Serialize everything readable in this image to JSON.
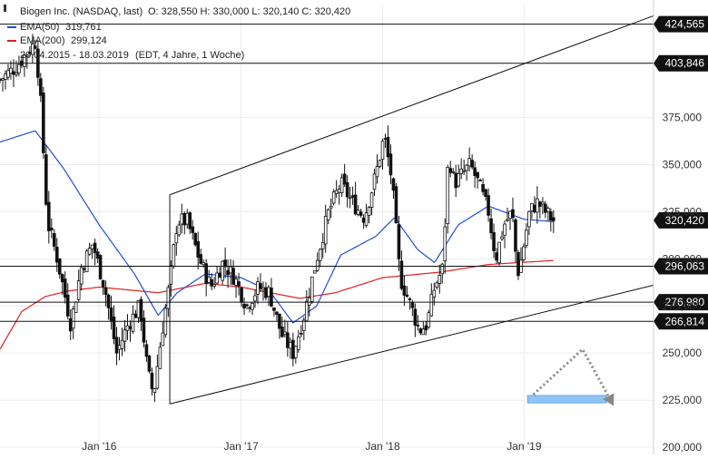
{
  "chart_data": {
    "type": "candlestick",
    "instrument": "Biogen Inc. (NASDAQ, last)",
    "ohlc": {
      "O": "328,550",
      "H": "330,000",
      "L": "320,140",
      "C": "320,420"
    },
    "ohlc_text": "O: 328,550  H: 330,000  L: 320,140  C: 320,420",
    "legend": [
      {
        "name": "EMA(50)",
        "value": "319,761",
        "color": "#1f4fd8"
      },
      {
        "name": "EMA(200)",
        "value": "299,124",
        "color": "#e02020"
      }
    ],
    "period": "20.04.2015 - 18.03.2019",
    "period_detail": "(EDT, 4 Jahre, 1 Woche)",
    "x_ticks": [
      {
        "label": "Jan '16",
        "date": "2016-01-01"
      },
      {
        "label": "Jan '17",
        "date": "2017-01-01"
      },
      {
        "label": "Jan '18",
        "date": "2018-01-01"
      },
      {
        "label": "Jan '19",
        "date": "2019-01-01"
      }
    ],
    "x_range": [
      "2015-04-20",
      "2019-12-01"
    ],
    "y_range": [
      200,
      435
    ],
    "y_ticks": [
      {
        "value": 200,
        "label": "200,000"
      },
      {
        "value": 225,
        "label": "225,000"
      },
      {
        "value": 250,
        "label": "250,000"
      },
      {
        "value": 275,
        "label": "275,000"
      },
      {
        "value": 300,
        "label": "300,000"
      },
      {
        "value": 325,
        "label": "325,000"
      },
      {
        "value": 350,
        "label": "350,000"
      },
      {
        "value": 375,
        "label": "375,000"
      }
    ],
    "horizontal_levels": [
      {
        "value": 424.565,
        "label": "424,565"
      },
      {
        "value": 403.846,
        "label": "403,846"
      },
      {
        "value": 296.063,
        "label": "296,063"
      },
      {
        "value": 276.98,
        "label": "276,980"
      },
      {
        "value": 266.814,
        "label": "266,814"
      }
    ],
    "current_price": {
      "value": 320.42,
      "label": "320,420"
    },
    "trend_channel": {
      "upper": [
        {
          "date": "2016-07-01",
          "price": 334
        },
        {
          "date": "2019-12-01",
          "price": 429
        }
      ],
      "lower": [
        {
          "date": "2016-07-01",
          "price": 223
        },
        {
          "date": "2019-12-01",
          "price": 286
        }
      ]
    },
    "closes_anchor": [
      {
        "date": "2015-04-20",
        "price": 395
      },
      {
        "date": "2015-06-01",
        "price": 402
      },
      {
        "date": "2015-07-20",
        "price": 415
      },
      {
        "date": "2015-08-01",
        "price": 390
      },
      {
        "date": "2015-08-20",
        "price": 320
      },
      {
        "date": "2015-09-15",
        "price": 300
      },
      {
        "date": "2015-10-20",
        "price": 265
      },
      {
        "date": "2015-11-15",
        "price": 295
      },
      {
        "date": "2015-12-15",
        "price": 308
      },
      {
        "date": "2016-01-15",
        "price": 285
      },
      {
        "date": "2016-02-15",
        "price": 250
      },
      {
        "date": "2016-03-15",
        "price": 265
      },
      {
        "date": "2016-04-15",
        "price": 275
      },
      {
        "date": "2016-05-05",
        "price": 240
      },
      {
        "date": "2016-05-20",
        "price": 228
      },
      {
        "date": "2016-06-10",
        "price": 260
      },
      {
        "date": "2016-07-01",
        "price": 288
      },
      {
        "date": "2016-07-20",
        "price": 320
      },
      {
        "date": "2016-08-15",
        "price": 320
      },
      {
        "date": "2016-09-15",
        "price": 300
      },
      {
        "date": "2016-10-15",
        "price": 285
      },
      {
        "date": "2016-11-15",
        "price": 298
      },
      {
        "date": "2016-12-15",
        "price": 290
      },
      {
        "date": "2017-01-15",
        "price": 275
      },
      {
        "date": "2017-02-15",
        "price": 285
      },
      {
        "date": "2017-03-15",
        "price": 282
      },
      {
        "date": "2017-04-15",
        "price": 260
      },
      {
        "date": "2017-05-15",
        "price": 250
      },
      {
        "date": "2017-06-10",
        "price": 268
      },
      {
        "date": "2017-07-15",
        "price": 300
      },
      {
        "date": "2017-08-15",
        "price": 325
      },
      {
        "date": "2017-09-15",
        "price": 340
      },
      {
        "date": "2017-10-15",
        "price": 330
      },
      {
        "date": "2017-11-15",
        "price": 322
      },
      {
        "date": "2017-12-15",
        "price": 345
      },
      {
        "date": "2018-01-05",
        "price": 365
      },
      {
        "date": "2018-01-25",
        "price": 342
      },
      {
        "date": "2018-02-15",
        "price": 290
      },
      {
        "date": "2018-03-15",
        "price": 275
      },
      {
        "date": "2018-04-05",
        "price": 262
      },
      {
        "date": "2018-04-25",
        "price": 265
      },
      {
        "date": "2018-05-15",
        "price": 285
      },
      {
        "date": "2018-06-05",
        "price": 295
      },
      {
        "date": "2018-06-20",
        "price": 355
      },
      {
        "date": "2018-07-05",
        "price": 340
      },
      {
        "date": "2018-07-25",
        "price": 345
      },
      {
        "date": "2018-08-15",
        "price": 350
      },
      {
        "date": "2018-09-05",
        "price": 340
      },
      {
        "date": "2018-10-01",
        "price": 325
      },
      {
        "date": "2018-10-20",
        "price": 300
      },
      {
        "date": "2018-11-10",
        "price": 318
      },
      {
        "date": "2018-12-01",
        "price": 325
      },
      {
        "date": "2018-12-15",
        "price": 292
      },
      {
        "date": "2018-12-25",
        "price": 300
      },
      {
        "date": "2019-01-15",
        "price": 325
      },
      {
        "date": "2019-02-05",
        "price": 330
      },
      {
        "date": "2019-02-25",
        "price": 325
      },
      {
        "date": "2019-03-18",
        "price": 320.42
      }
    ],
    "ema50_anchor": [
      {
        "date": "2015-04-20",
        "price": 362
      },
      {
        "date": "2015-07-20",
        "price": 368
      },
      {
        "date": "2015-10-01",
        "price": 348
      },
      {
        "date": "2016-01-01",
        "price": 318
      },
      {
        "date": "2016-04-01",
        "price": 292
      },
      {
        "date": "2016-06-01",
        "price": 270
      },
      {
        "date": "2016-07-20",
        "price": 282
      },
      {
        "date": "2016-10-01",
        "price": 292
      },
      {
        "date": "2017-01-01",
        "price": 290
      },
      {
        "date": "2017-03-15",
        "price": 283
      },
      {
        "date": "2017-05-15",
        "price": 266
      },
      {
        "date": "2017-07-15",
        "price": 275
      },
      {
        "date": "2017-09-15",
        "price": 302
      },
      {
        "date": "2017-12-15",
        "price": 312
      },
      {
        "date": "2018-02-01",
        "price": 322
      },
      {
        "date": "2018-04-01",
        "price": 305
      },
      {
        "date": "2018-05-15",
        "price": 298
      },
      {
        "date": "2018-07-15",
        "price": 318
      },
      {
        "date": "2018-10-01",
        "price": 328
      },
      {
        "date": "2019-01-01",
        "price": 321
      },
      {
        "date": "2019-03-18",
        "price": 319.761
      }
    ],
    "ema200_anchor": [
      {
        "date": "2015-04-20",
        "price": 252
      },
      {
        "date": "2015-06-15",
        "price": 272
      },
      {
        "date": "2015-08-15",
        "price": 280
      },
      {
        "date": "2015-10-15",
        "price": 283
      },
      {
        "date": "2016-01-01",
        "price": 285
      },
      {
        "date": "2016-06-01",
        "price": 282
      },
      {
        "date": "2016-10-01",
        "price": 287
      },
      {
        "date": "2017-01-01",
        "price": 285
      },
      {
        "date": "2017-06-01",
        "price": 279
      },
      {
        "date": "2017-09-01",
        "price": 282
      },
      {
        "date": "2018-01-01",
        "price": 290
      },
      {
        "date": "2018-06-01",
        "price": 293
      },
      {
        "date": "2018-10-01",
        "price": 297
      },
      {
        "date": "2019-03-18",
        "price": 299.124
      }
    ],
    "annotations": {
      "target_zone": {
        "date_from": "2019-01-10",
        "date_to": "2019-08-01",
        "price_low": 223.5,
        "price_high": 227.5,
        "color": "#90c4f5"
      },
      "projected_path": [
        {
          "date": "2019-01-25",
          "price": 228
        },
        {
          "date": "2019-06-01",
          "price": 252
        },
        {
          "date": "2019-08-20",
          "price": 222
        }
      ]
    }
  }
}
